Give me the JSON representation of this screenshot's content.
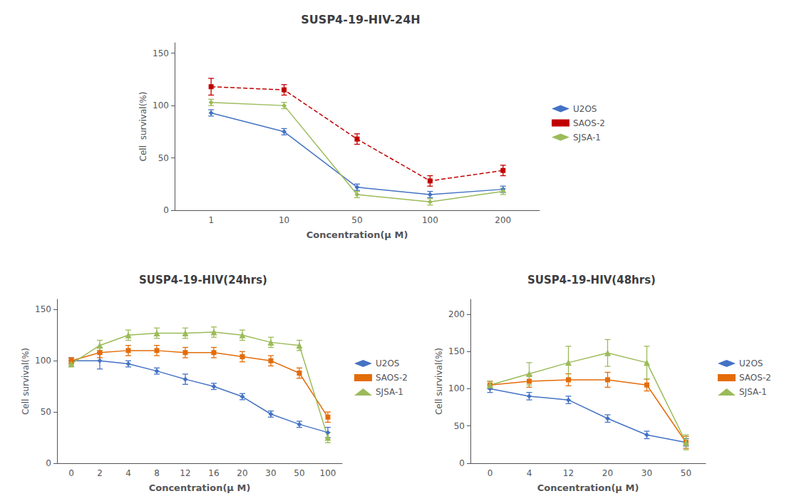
{
  "chart_data": [
    {
      "type": "line",
      "title": "SUSP4-19-HIV-24H",
      "categories": [
        "1",
        "10",
        "50",
        "100",
        "200"
      ],
      "xlabel": "Concentration(μ M)",
      "ylabel": "Cell  survival(%)",
      "ylim": [
        0,
        160
      ],
      "yticks": [
        0,
        50,
        100,
        150
      ],
      "grid": false,
      "legend": "right",
      "series": [
        {
          "name": "U2OS",
          "color": "#4472c4",
          "marker": "diamond",
          "line_style": "solid",
          "values": [
            93,
            75,
            22,
            15,
            20
          ],
          "errors": [
            3,
            3,
            3,
            3,
            3
          ]
        },
        {
          "name": "SAOS-2",
          "color": "#c00000",
          "marker": "square",
          "line_style": "dashed",
          "values": [
            118,
            115,
            68,
            28,
            38
          ],
          "errors": [
            8,
            5,
            5,
            5,
            5
          ]
        },
        {
          "name": "SJSA-1",
          "color": "#9bbb59",
          "marker": "diamond",
          "line_style": "solid",
          "values": [
            103,
            100,
            15,
            8,
            18
          ],
          "errors": [
            3,
            3,
            3,
            3,
            3
          ]
        }
      ]
    },
    {
      "type": "line",
      "title": "SUSP4-19-HIV(24hrs)",
      "categories": [
        "0",
        "2",
        "4",
        "8",
        "12",
        "16",
        "20",
        "30",
        "50",
        "100"
      ],
      "xlabel": "Concentration(μ M)",
      "ylabel": "Cell survival(%)",
      "ylim": [
        0,
        160
      ],
      "yticks": [
        0,
        50,
        100,
        150
      ],
      "grid": false,
      "legend": "right",
      "series": [
        {
          "name": "U2OS",
          "color": "#4472c4",
          "marker": "diamond",
          "line_style": "solid",
          "values": [
            100,
            100,
            97,
            90,
            82,
            75,
            65,
            48,
            38,
            30
          ],
          "errors": [
            3,
            8,
            3,
            3,
            5,
            3,
            3,
            3,
            3,
            5
          ]
        },
        {
          "name": "SAOS-2",
          "color": "#e36c09",
          "marker": "square",
          "line_style": "solid",
          "values": [
            100,
            108,
            110,
            110,
            108,
            108,
            104,
            100,
            88,
            45
          ],
          "errors": [
            3,
            5,
            5,
            5,
            5,
            5,
            5,
            5,
            5,
            5
          ]
        },
        {
          "name": "SJSA-1",
          "color": "#9bbb59",
          "marker": "triangle",
          "line_style": "solid",
          "values": [
            97,
            115,
            125,
            127,
            127,
            128,
            125,
            118,
            115,
            25
          ],
          "errors": [
            3,
            5,
            5,
            5,
            5,
            5,
            5,
            5,
            5,
            5
          ]
        }
      ]
    },
    {
      "type": "line",
      "title": "SUSP4-19-HIV(48hrs)",
      "categories": [
        "0",
        "4",
        "12",
        "20",
        "30",
        "50"
      ],
      "xlabel": "Concentration(μ M)",
      "ylabel": "Cell survival(%)",
      "ylim": [
        0,
        220
      ],
      "yticks": [
        0,
        50,
        100,
        150,
        200
      ],
      "grid": false,
      "legend": "right",
      "series": [
        {
          "name": "U2OS",
          "color": "#4472c4",
          "marker": "diamond",
          "line_style": "solid",
          "values": [
            100,
            90,
            85,
            60,
            38,
            28
          ],
          "errors": [
            5,
            5,
            5,
            5,
            5,
            5
          ]
        },
        {
          "name": "SAOS-2",
          "color": "#e36c09",
          "marker": "square",
          "line_style": "solid",
          "values": [
            105,
            110,
            112,
            112,
            105,
            28
          ],
          "errors": [
            5,
            8,
            8,
            10,
            8,
            8
          ]
        },
        {
          "name": "SJSA-1",
          "color": "#9bbb59",
          "marker": "triangle",
          "line_style": "solid",
          "values": [
            105,
            120,
            135,
            148,
            135,
            28
          ],
          "errors": [
            5,
            15,
            22,
            18,
            22,
            10
          ]
        }
      ]
    }
  ]
}
